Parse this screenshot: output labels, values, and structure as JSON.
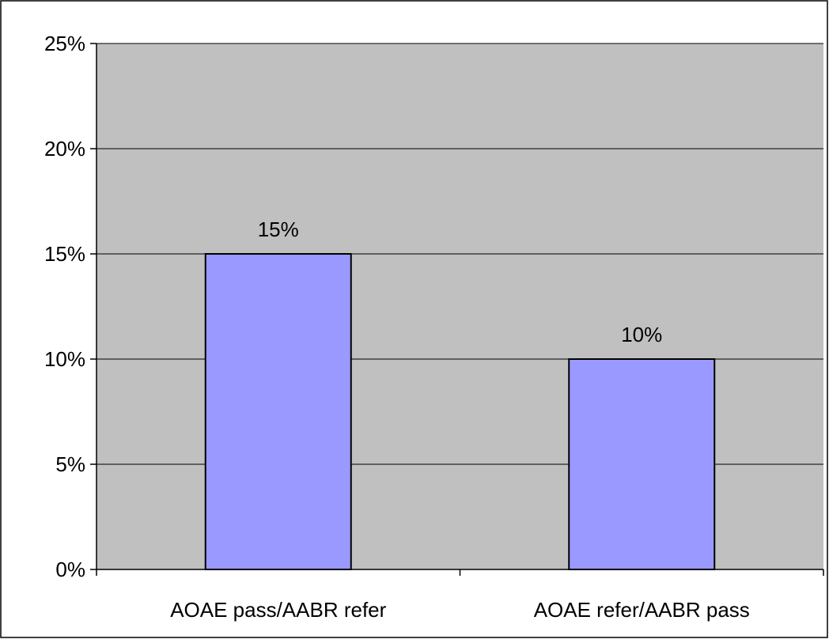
{
  "chart_data": {
    "type": "bar",
    "title": "",
    "xlabel": "",
    "ylabel": "",
    "categories": [
      "AOAE pass/AABR refer",
      "AOAE refer/AABR pass"
    ],
    "values": [
      15,
      10
    ],
    "data_labels": [
      "15%",
      "10%"
    ],
    "ylim": [
      0,
      25
    ],
    "yticks": [
      0,
      5,
      10,
      15,
      20,
      25
    ],
    "ytick_labels": [
      "0%",
      "5%",
      "10%",
      "15%",
      "20%",
      "25%"
    ],
    "grid": true,
    "legend": "none",
    "colors": {
      "bar_fill": "#9999ff",
      "plot_background": "#c0c0c0",
      "gridline": "#000000",
      "frame": "#000000"
    }
  }
}
